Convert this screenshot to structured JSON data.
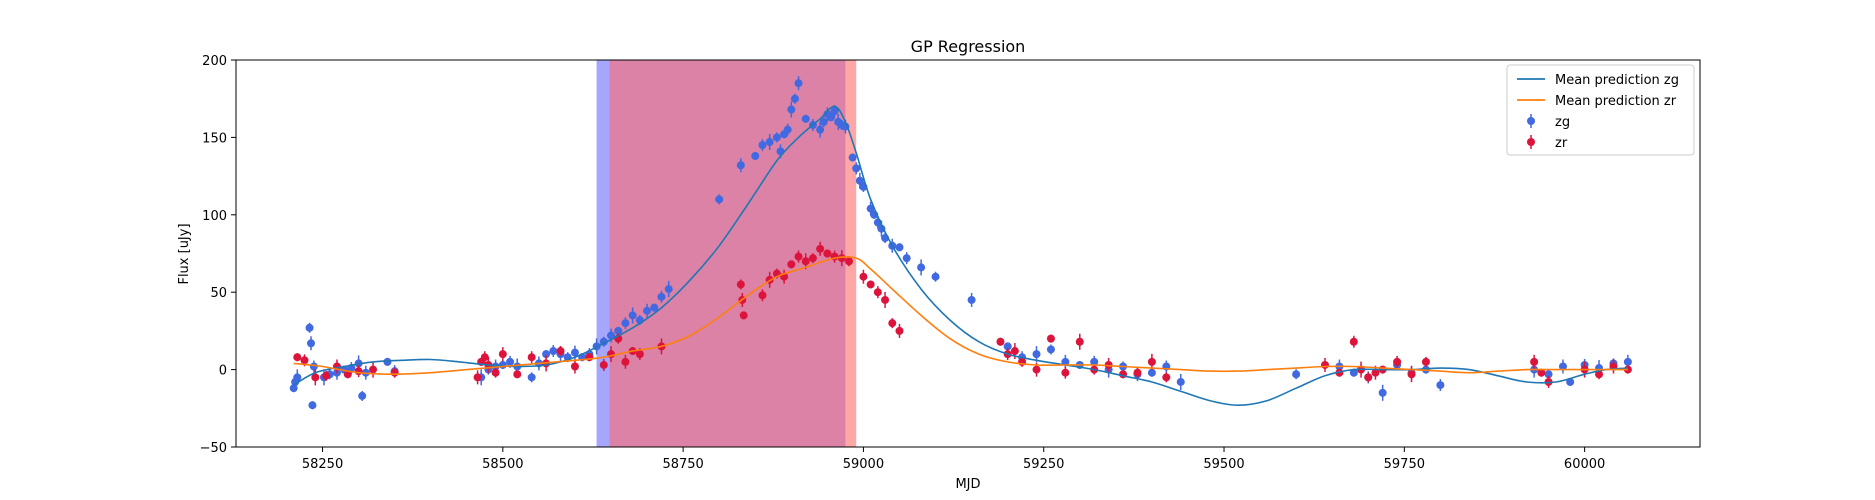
{
  "chart_data": {
    "type": "scatter",
    "title": "GP Regression",
    "xlabel": "MJD",
    "ylabel": "Flux [uJy]",
    "xlim": [
      58130,
      60160
    ],
    "ylim": [
      -50,
      200
    ],
    "xticks": [
      58250,
      58500,
      58750,
      59000,
      59250,
      59500,
      59750,
      60000
    ],
    "yticks": [
      -50,
      0,
      50,
      100,
      150,
      200
    ],
    "grid": false,
    "legend_position": "top-right",
    "legend": [
      "Mean prediction zg",
      "Mean prediction zr",
      "zg",
      "zr"
    ],
    "colors": {
      "mean_zg": "#1f77b4",
      "mean_zr": "#ff7f0e",
      "zg_points": "#4169e1",
      "zr_points": "#dc143c",
      "span_zg": "#6b6bff",
      "span_zr": "#ff6b6b"
    },
    "shaded_regions": [
      {
        "series": "zg",
        "x0": 58630,
        "x1": 58975
      },
      {
        "series": "zr",
        "x0": 58648,
        "x1": 58990
      }
    ],
    "series": [
      {
        "name": "Mean prediction zg",
        "kind": "line",
        "x": [
          58210,
          58240,
          58280,
          58320,
          58360,
          58400,
          58440,
          58480,
          58520,
          58560,
          58600,
          58640,
          58680,
          58720,
          58760,
          58800,
          58840,
          58880,
          58910,
          58940,
          58960,
          58975,
          58990,
          59010,
          59040,
          59080,
          59120,
          59160,
          59200,
          59240,
          59280,
          59320,
          59360,
          59400,
          59440,
          59480,
          59520,
          59560,
          59600,
          59640,
          59680,
          59720,
          59760,
          59800,
          59840,
          59880,
          59920,
          59960,
          60000,
          60030,
          60060
        ],
        "values": [
          -10,
          -2,
          2,
          5,
          6,
          6.5,
          5,
          3,
          2,
          3,
          8,
          17,
          27,
          40,
          58,
          80,
          107,
          135,
          150,
          162,
          170,
          160,
          140,
          110,
          80,
          52,
          32,
          18,
          10,
          6,
          3,
          0,
          -4,
          -8,
          -14,
          -20,
          -23,
          -20,
          -12,
          -4,
          0,
          0,
          0,
          1,
          0,
          -4,
          -8,
          -8,
          -3,
          0,
          1
        ]
      },
      {
        "name": "Mean prediction zr",
        "kind": "line",
        "x": [
          58210,
          58250,
          58300,
          58350,
          58400,
          58450,
          58500,
          58550,
          58600,
          58640,
          58680,
          58720,
          58760,
          58800,
          58840,
          58880,
          58920,
          58960,
          58990,
          59010,
          59040,
          59080,
          59120,
          59160,
          59200,
          59240,
          59280,
          59320,
          59360,
          59400,
          59440,
          59480,
          59520,
          59560,
          59600,
          59640,
          59680,
          59720,
          59760,
          59800,
          59840,
          59880,
          59920,
          59960,
          60000,
          60060
        ],
        "values": [
          4,
          2,
          -2,
          -3,
          -2,
          0,
          2,
          4,
          6,
          8,
          12,
          15,
          22,
          34,
          48,
          60,
          66,
          72,
          72,
          65,
          52,
          35,
          20,
          10,
          5,
          3,
          3,
          3,
          2,
          1,
          0,
          -1,
          -1,
          0,
          1,
          2,
          2,
          1,
          0,
          -1,
          -2,
          -1,
          0,
          0,
          0,
          0
        ]
      },
      {
        "name": "zg",
        "kind": "points",
        "x": [
          58210,
          58212,
          58215,
          58232,
          58234,
          58236,
          58238,
          58252,
          58260,
          58270,
          58280,
          58290,
          58300,
          58305,
          58310,
          58340,
          58350,
          58470,
          58480,
          58490,
          58500,
          58510,
          58520,
          58540,
          58550,
          58560,
          58570,
          58580,
          58590,
          58600,
          58610,
          58620,
          58630,
          58640,
          58650,
          58660,
          58670,
          58680,
          58690,
          58700,
          58710,
          58720,
          58730,
          58800,
          58830,
          58850,
          58860,
          58870,
          58880,
          58885,
          58890,
          58895,
          58900,
          58905,
          58910,
          58920,
          58930,
          58940,
          58945,
          58950,
          58955,
          58960,
          58965,
          58970,
          58975,
          58985,
          58990,
          58995,
          59000,
          59010,
          59015,
          59020,
          59025,
          59030,
          59040,
          59050,
          59060,
          59080,
          59100,
          59150,
          59200,
          59220,
          59240,
          59260,
          59280,
          59300,
          59320,
          59340,
          59360,
          59380,
          59400,
          59420,
          59440,
          59600,
          59660,
          59680,
          59700,
          59720,
          59740,
          59760,
          59780,
          59800,
          59930,
          59950,
          59970,
          59980,
          60000,
          60020,
          60040,
          60060
        ],
        "values": [
          -12,
          -8,
          -5,
          27,
          17,
          -23,
          2,
          -5,
          -3,
          -2,
          0,
          1,
          4,
          -17,
          -2,
          5,
          -1,
          -5,
          0,
          2,
          3,
          5,
          2,
          -5,
          4,
          10,
          12,
          10,
          8,
          11,
          8,
          10,
          15,
          18,
          22,
          25,
          30,
          35,
          32,
          38,
          40,
          47,
          52,
          110,
          132,
          138,
          145,
          147,
          150,
          141,
          152,
          155,
          168,
          175,
          185,
          162,
          158,
          155,
          160,
          165,
          163,
          167,
          160,
          158,
          157,
          137,
          130,
          122,
          118,
          104,
          100,
          95,
          91,
          85,
          80,
          79,
          72,
          66,
          60,
          45,
          15,
          8,
          10,
          13,
          5,
          3,
          5,
          0,
          2,
          -3,
          -2,
          2,
          -8,
          -3,
          2,
          -2,
          -5,
          -15,
          3,
          -2,
          0,
          -10,
          0,
          -3,
          2,
          -8,
          3,
          1,
          4,
          5
        ]
      },
      {
        "name": "zr",
        "kind": "points",
        "x": [
          58215,
          58225,
          58240,
          58255,
          58270,
          58285,
          58300,
          58320,
          58350,
          58465,
          58470,
          58475,
          58480,
          58490,
          58500,
          58520,
          58540,
          58560,
          58580,
          58600,
          58620,
          58640,
          58650,
          58660,
          58670,
          58680,
          58690,
          58720,
          58830,
          58832,
          58834,
          58860,
          58870,
          58880,
          58890,
          58900,
          58910,
          58920,
          58930,
          58940,
          58950,
          58960,
          58970,
          58980,
          59000,
          59010,
          59020,
          59030,
          59040,
          59050,
          59190,
          59200,
          59210,
          59220,
          59240,
          59260,
          59280,
          59300,
          59320,
          59340,
          59360,
          59380,
          59400,
          59420,
          59640,
          59660,
          59680,
          59690,
          59700,
          59710,
          59720,
          59740,
          59760,
          59780,
          59930,
          59940,
          59950,
          60000,
          60020,
          60040,
          60060
        ],
        "values": [
          8,
          6,
          -5,
          -4,
          2,
          -3,
          -1,
          0,
          -2,
          -5,
          5,
          8,
          3,
          -2,
          10,
          -3,
          8,
          4,
          12,
          2,
          8,
          3,
          10,
          20,
          5,
          12,
          10,
          15,
          55,
          45,
          35,
          48,
          58,
          62,
          60,
          68,
          73,
          70,
          72,
          78,
          75,
          73,
          72,
          70,
          60,
          55,
          50,
          45,
          30,
          25,
          18,
          10,
          12,
          5,
          0,
          20,
          -2,
          18,
          0,
          3,
          -3,
          -2,
          5,
          -5,
          3,
          -2,
          18,
          0,
          -5,
          -2,
          0,
          5,
          -3,
          5,
          5,
          -2,
          -8,
          0,
          -3,
          2,
          0
        ]
      }
    ]
  }
}
